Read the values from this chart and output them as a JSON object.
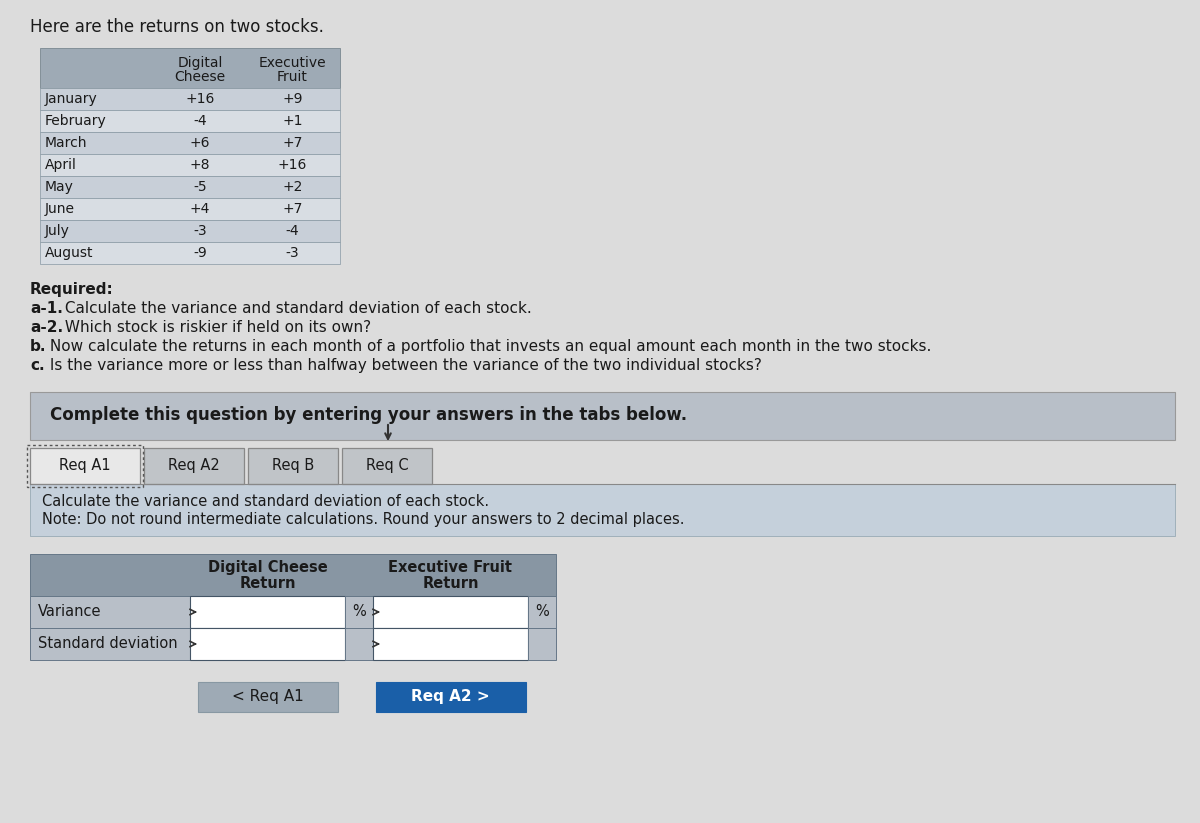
{
  "title": "Here are the returns on two stocks.",
  "top_table": {
    "months": [
      "January",
      "February",
      "March",
      "April",
      "May",
      "June",
      "July",
      "August"
    ],
    "digital_cheese": [
      "+16",
      "-4",
      "+6",
      "+8",
      "-5",
      "+4",
      "-3",
      "-9"
    ],
    "executive_fruit": [
      "+9",
      "+1",
      "+7",
      "+16",
      "+2",
      "+7",
      "-4",
      "-3"
    ],
    "col1_header": [
      "Digital",
      "Cheese"
    ],
    "col2_header": [
      "Executive",
      "Fruit"
    ]
  },
  "required_lines": [
    {
      "text": "Required:",
      "bold": true,
      "prefix": "",
      "prefix_bold": false
    },
    {
      "text": " Calculate the variance and standard deviation of each stock.",
      "bold": false,
      "prefix": "a-1.",
      "prefix_bold": true
    },
    {
      "text": " Which stock is riskier if held on its own?",
      "bold": false,
      "prefix": "a-2.",
      "prefix_bold": true
    },
    {
      "text": " Now calculate the returns in each month of a portfolio that invests an equal amount each month in the two stocks.",
      "bold": false,
      "prefix": "b.",
      "prefix_bold": true
    },
    {
      "text": " Is the variance more or less than halfway between the variance of the two individual stocks?",
      "bold": false,
      "prefix": "c.",
      "prefix_bold": true
    }
  ],
  "complete_box_text": "Complete this question by entering your answers in the tabs below.",
  "tabs": [
    "Req A1",
    "Req A2",
    "Req B",
    "Req C"
  ],
  "active_tab": "Req A1",
  "instruction_line1": "Calculate the variance and standard deviation of each stock.",
  "instruction_line2": "Note: Do not round intermediate calculations. Round your answers to 2 decimal places.",
  "bottom_table_rows": [
    "Variance",
    "Standard deviation"
  ],
  "dc_header1": "Digital Cheese",
  "dc_header2": "Return",
  "ef_header1": "Executive Fruit",
  "ef_header2": "Return",
  "btn_left_text": "< Req A1",
  "btn_right_text": "Req A2 >",
  "bg_color": "#dcdcdc",
  "white": "#ffffff",
  "table_header_bg": "#9eaab5",
  "table_row_even": "#c8cfd8",
  "table_row_odd": "#d8dde3",
  "complete_box_bg": "#b8bfc8",
  "instruction_bg": "#c5d0db",
  "tab_active_bg": "#e8e8e8",
  "tab_inactive_bg": "#c0c4c8",
  "btn_left_bg": "#9eaab5",
  "btn_right_bg": "#1a5fa8",
  "btn_right_fg": "#ffffff",
  "text_dark": "#1a1a1a",
  "bottom_table_label_bg": "#b8bfc8",
  "bottom_table_input_bg": "#ffffff",
  "bottom_table_header_bg": "#8896a3"
}
